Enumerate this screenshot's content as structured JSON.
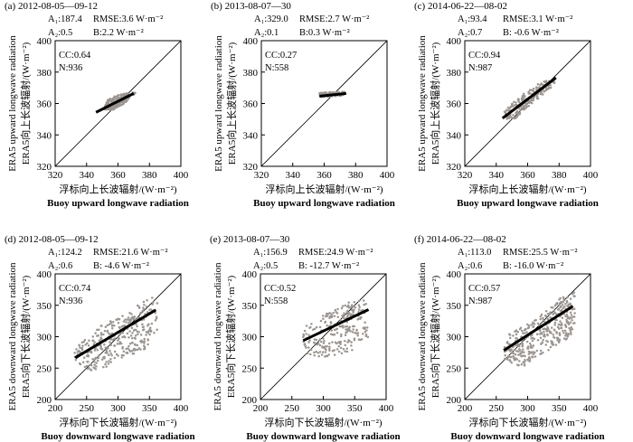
{
  "figure": {
    "panel_count": 6
  },
  "chart_data": [
    {
      "id": "a",
      "type": "scatter",
      "title": "(a) 2012-08-05—09-12",
      "xlabel_cn": "浮标向上长波辐射/(W·m⁻²)",
      "xlabel_en": "Buoy upward longwave radiation",
      "ylabel_cn": "ERA5向上长波辐射/(W·m⁻²)",
      "ylabel_en": "ERA5 upward longwave radiation",
      "xlim": [
        320,
        400
      ],
      "ylim": [
        320,
        400
      ],
      "xticks": [
        320,
        340,
        360,
        380,
        400
      ],
      "yticks": [
        320,
        340,
        360,
        380,
        400
      ],
      "stats": {
        "a1": "A₁:187.4",
        "a2": "A₂:0.5",
        "rmse": "RMSE:3.6 W·m⁻²",
        "b": "B:2.2 W·m⁻²"
      },
      "cc": "CC:0.64",
      "n": "N:936",
      "fit": {
        "x": [
          346,
          370
        ],
        "y": [
          354.4,
          366.4
        ]
      },
      "cloud": {
        "count": 180,
        "xmin": 348,
        "xmax": 371,
        "seed": 11,
        "noise_y": 2.0,
        "poly": [
          [
            350.5,
            355.5
          ],
          [
            353,
            363
          ],
          [
            364,
            366.5
          ],
          [
            371,
            367.5
          ],
          [
            371,
            366
          ],
          [
            364,
            360
          ],
          [
            356,
            355.5
          ]
        ]
      }
    },
    {
      "id": "b",
      "type": "scatter",
      "title": "(b) 2013-08-07—30",
      "xlabel_cn": "浮标向上长波辐射/(W·m⁻²)",
      "xlabel_en": "Buoy upward longwave radiation",
      "ylabel_cn": "ERA5向上长波辐射/(W·m⁻²)",
      "ylabel_en": "ERA5 upward longwave radiation",
      "xlim": [
        320,
        400
      ],
      "ylim": [
        320,
        400
      ],
      "xticks": [
        320,
        340,
        360,
        380,
        400
      ],
      "yticks": [
        320,
        340,
        360,
        380,
        400
      ],
      "stats": {
        "a1": "A₁:329.0",
        "a2": "A₂:0.1",
        "rmse": "RMSE:2.7 W·m⁻²",
        "b": "B:0.3 W·m⁻²"
      },
      "cc": "CC:0.27",
      "n": "N:558",
      "fit": {
        "x": [
          357,
          374
        ],
        "y": [
          364.7,
          366.4
        ]
      },
      "cloud": {
        "count": 110,
        "xmin": 357,
        "xmax": 373,
        "seed": 23,
        "noise_y": 0.8,
        "poly": [
          [
            357,
            364
          ],
          [
            357,
            367
          ],
          [
            373,
            367.5
          ],
          [
            373,
            365
          ]
        ]
      }
    },
    {
      "id": "c",
      "type": "scatter",
      "title": "(c) 2014-06-22—08-02",
      "xlabel_cn": "浮标向上长波辐射/(W·m⁻²)",
      "xlabel_en": "Buoy upward longwave radiation",
      "ylabel_cn": "ERA5向上长波辐射/(W·m⁻²)",
      "ylabel_en": "ERA5 upward longwave radiation",
      "xlim": [
        320,
        400
      ],
      "ylim": [
        320,
        400
      ],
      "xticks": [
        320,
        340,
        360,
        380,
        400
      ],
      "yticks": [
        320,
        340,
        360,
        380,
        400
      ],
      "stats": {
        "a1": "A₁:93.4",
        "a2": "A₂:0.7",
        "rmse": "RMSE:3.1 W·m⁻²",
        "b": "B: -0.6 W·m⁻²"
      },
      "cc": "CC:0.94",
      "n": "N:987",
      "fit": {
        "x": [
          344,
          378
        ],
        "y": [
          350.6,
          376.4
        ]
      },
      "cloud": {
        "count": 200,
        "xmin": 345,
        "xmax": 378,
        "seed": 37,
        "noise_y": 2.0,
        "poly": [
          [
            345,
            350
          ],
          [
            345,
            355
          ],
          [
            356,
            365.5
          ],
          [
            370,
            374.5
          ],
          [
            379,
            376
          ],
          [
            376,
            371
          ],
          [
            360,
            357.5
          ],
          [
            352,
            350
          ]
        ]
      }
    },
    {
      "id": "d",
      "type": "scatter",
      "title": "(d) 2012-08-05—09-12",
      "xlabel_cn": "浮标向下长波辐射/(W·m⁻²)",
      "xlabel_en": "Buoy downward longwave radiation",
      "ylabel_cn": "ERA5向下长波辐射/(W·m⁻²)",
      "ylabel_en": "ERA5 downward longwave radiation",
      "xlim": [
        200,
        400
      ],
      "ylim": [
        200,
        400
      ],
      "xticks": [
        200,
        250,
        300,
        350,
        400
      ],
      "yticks": [
        200,
        250,
        300,
        350,
        400
      ],
      "stats": {
        "a1": "A₁:124.2",
        "a2": "A₂:0.6",
        "rmse": "RMSE:21.6 W·m⁻²",
        "b": "B: -4.6 W·m⁻²"
      },
      "cc": "CC:0.74",
      "n": "N:936",
      "fit": {
        "x": [
          232,
          360
        ],
        "y": [
          266.5,
          342.5
        ]
      },
      "cloud": {
        "count": 340,
        "xmin": 228,
        "xmax": 363,
        "seed": 53,
        "noise_y": 11,
        "poly": [
          [
            230,
            262
          ],
          [
            230,
            280
          ],
          [
            272,
            318
          ],
          [
            318,
            338
          ],
          [
            345,
            362
          ],
          [
            363,
            362
          ],
          [
            363,
            305
          ],
          [
            342,
            280
          ],
          [
            300,
            262
          ],
          [
            262,
            242
          ]
        ]
      }
    },
    {
      "id": "e",
      "type": "scatter",
      "title": "(e) 2013-08-07—30",
      "xlabel_cn": "浮标向下长波辐射/(W·m⁻²)",
      "xlabel_en": "Buoy downward longwave radiation",
      "ylabel_cn": "ERA5向下长波辐射/(W·m⁻²)",
      "ylabel_en": "ERA5 downward longwave radiation",
      "xlim": [
        200,
        400
      ],
      "ylim": [
        200,
        400
      ],
      "xticks": [
        200,
        250,
        300,
        350,
        400
      ],
      "yticks": [
        200,
        250,
        300,
        350,
        400
      ],
      "stats": {
        "a1": "A₁:156.9",
        "a2": "A₂:0.5",
        "rmse": "RMSE:24.9 W·m⁻²",
        "b": "B: -12.7 W·m⁻²"
      },
      "cc": "CC:0.52",
      "n": "N:558",
      "fit": {
        "x": [
          268,
          372
        ],
        "y": [
          293.8,
          343.2
        ]
      },
      "cloud": {
        "count": 240,
        "xmin": 268,
        "xmax": 372,
        "seed": 71,
        "noise_y": 13,
        "poly": [
          [
            268,
            270
          ],
          [
            268,
            315
          ],
          [
            310,
            340
          ],
          [
            340,
            355
          ],
          [
            372,
            368
          ],
          [
            372,
            300
          ],
          [
            345,
            278
          ],
          [
            300,
            265
          ]
        ]
      }
    },
    {
      "id": "f",
      "type": "scatter",
      "title": "(f) 2014-06-22—08-02",
      "xlabel_cn": "浮标向下长波辐射/(W·m⁻²)",
      "xlabel_en": "Buoy downward longwave radiation",
      "ylabel_cn": "ERA5向下长波辐射/(W·m⁻²)",
      "ylabel_en": "ERA5 downward longwave radiation",
      "xlim": [
        200,
        400
      ],
      "ylim": [
        200,
        400
      ],
      "xticks": [
        200,
        250,
        300,
        350,
        400
      ],
      "yticks": [
        200,
        250,
        300,
        350,
        400
      ],
      "stats": {
        "a1": "A₁:113.0",
        "a2": "A₂:0.6",
        "rmse": "RMSE:25.5 W·m⁻²",
        "b": "B: -16.0 W·m⁻²"
      },
      "cc": "CC:0.57",
      "n": "N:987",
      "fit": {
        "x": [
          262,
          372
        ],
        "y": [
          278.2,
          348.6
        ]
      },
      "cloud": {
        "count": 380,
        "xmin": 262,
        "xmax": 375,
        "seed": 97,
        "noise_y": 11,
        "poly": [
          [
            262,
            265
          ],
          [
            262,
            300
          ],
          [
            300,
            320
          ],
          [
            335,
            345
          ],
          [
            352,
            362
          ],
          [
            375,
            372
          ],
          [
            375,
            308
          ],
          [
            355,
            290
          ],
          [
            335,
            275
          ],
          [
            310,
            265
          ],
          [
            290,
            250
          ]
        ]
      }
    }
  ]
}
